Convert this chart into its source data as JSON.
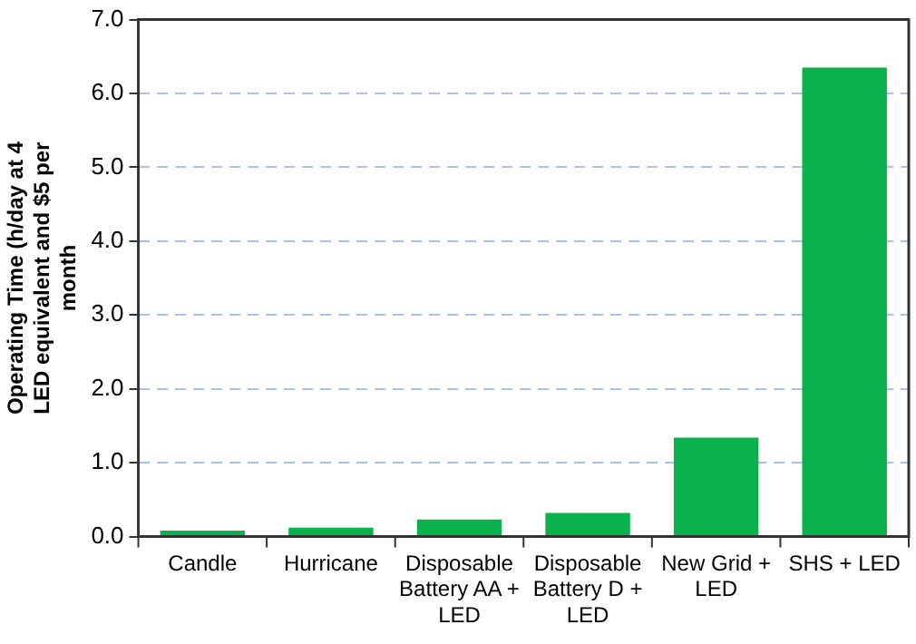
{
  "chart_data": {
    "type": "bar",
    "categories": [
      "Candle",
      "Hurricane",
      "Disposable Battery AA + LED",
      "Disposable Battery D + LED",
      "New Grid + LED",
      "SHS + LED"
    ],
    "values": [
      0.08,
      0.12,
      0.23,
      0.32,
      1.34,
      6.35
    ],
    "color": "#0ab14c",
    "ylabel": "Operating Time (h/day at 4 LED equivalent and $5 per month",
    "ylim": [
      0,
      7
    ],
    "yticks": [
      {
        "value": 0,
        "label": "0.0"
      },
      {
        "value": 1,
        "label": "1.0"
      },
      {
        "value": 2,
        "label": "2.0"
      },
      {
        "value": 3,
        "label": "3.0"
      },
      {
        "value": 4,
        "label": "4.0"
      },
      {
        "value": 5,
        "label": "5.0"
      },
      {
        "value": 6,
        "label": "6.0"
      },
      {
        "value": 7,
        "label": "7.0"
      }
    ],
    "grid": "y"
  }
}
